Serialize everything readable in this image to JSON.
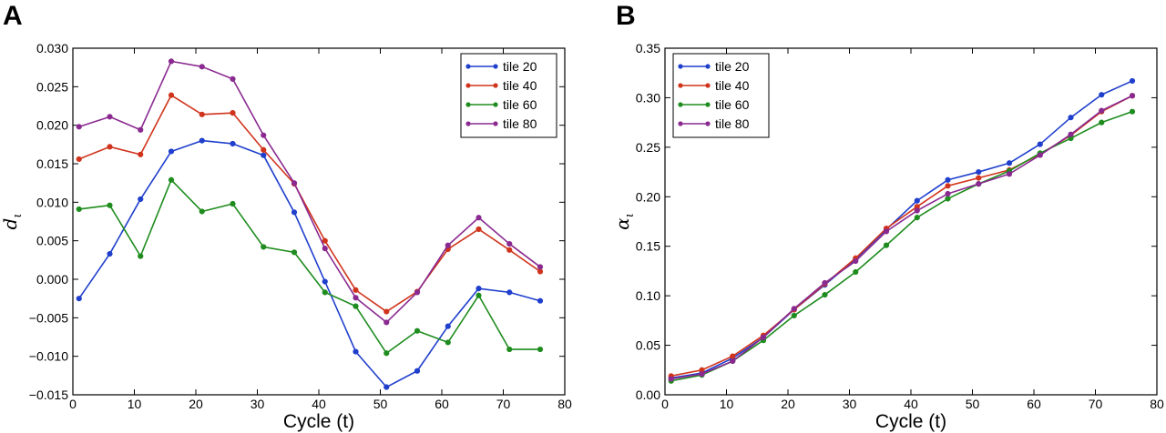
{
  "chart_data": [
    {
      "panel": "A",
      "type": "line",
      "xlabel": "Cycle (t)",
      "ylabel_symbol": "d",
      "ylabel_subscript": "ι",
      "xlim": [
        0,
        80
      ],
      "ylim": [
        -0.015,
        0.03
      ],
      "xticks": [
        0,
        10,
        20,
        30,
        40,
        50,
        60,
        70,
        80
      ],
      "yticks": [
        -0.015,
        -0.01,
        -0.005,
        0.0,
        0.005,
        0.01,
        0.015,
        0.02,
        0.025,
        0.03
      ],
      "ytick_labels": [
        "−0.015",
        "−0.010",
        "−0.005",
        "0.000",
        "0.005",
        "0.010",
        "0.015",
        "0.020",
        "0.025",
        "0.030"
      ],
      "legend_position": "top-right",
      "x": [
        1,
        6,
        11,
        16,
        21,
        26,
        31,
        36,
        41,
        46,
        51,
        56,
        61,
        66,
        71,
        76
      ],
      "series": [
        {
          "name": "tile 20",
          "color": "#1f3fcc",
          "values": [
            -0.0025,
            0.0033,
            0.0104,
            0.0166,
            0.018,
            0.0176,
            0.0161,
            0.0087,
            -0.0003,
            -0.0094,
            -0.014,
            -0.0119,
            -0.0061,
            -0.0012,
            -0.0017,
            -0.0028
          ]
        },
        {
          "name": "tile 40",
          "color": "#d0341c",
          "values": [
            0.0156,
            0.0172,
            0.0162,
            0.0239,
            0.0214,
            0.0216,
            0.0168,
            0.0124,
            0.005,
            -0.0014,
            -0.0042,
            -0.0016,
            0.0039,
            0.0065,
            0.0038,
            0.001
          ]
        },
        {
          "name": "tile 60",
          "color": "#1e8c1e",
          "values": [
            0.0091,
            0.0096,
            0.003,
            0.0129,
            0.0088,
            0.0098,
            0.0042,
            0.0035,
            -0.0017,
            -0.0035,
            -0.0096,
            -0.0067,
            -0.0082,
            -0.0021,
            -0.0091,
            -0.0091
          ]
        },
        {
          "name": "tile 80",
          "color": "#8a2a90",
          "values": [
            0.0198,
            0.0211,
            0.0194,
            0.0283,
            0.0276,
            0.026,
            0.0187,
            0.0125,
            0.004,
            -0.0024,
            -0.0056,
            -0.0017,
            0.0044,
            0.008,
            0.0046,
            0.0016
          ]
        }
      ]
    },
    {
      "panel": "B",
      "type": "line",
      "xlabel": "Cycle (t)",
      "ylabel_symbol": "α",
      "ylabel_subscript": "ι",
      "xlim": [
        0,
        80
      ],
      "ylim": [
        0.0,
        0.35
      ],
      "xticks": [
        0,
        10,
        20,
        30,
        40,
        50,
        60,
        70,
        80
      ],
      "yticks": [
        0.0,
        0.05,
        0.1,
        0.15,
        0.2,
        0.25,
        0.3,
        0.35
      ],
      "ytick_labels": [
        "0.00",
        "0.05",
        "0.10",
        "0.15",
        "0.20",
        "0.25",
        "0.30",
        "0.35"
      ],
      "legend_position": "top-left",
      "x": [
        1,
        6,
        11,
        16,
        21,
        26,
        31,
        36,
        41,
        46,
        51,
        56,
        61,
        66,
        71,
        76
      ],
      "series": [
        {
          "name": "tile 20",
          "color": "#1f3fcc",
          "values": [
            0.017,
            0.022,
            0.037,
            0.058,
            0.086,
            0.111,
            0.137,
            0.167,
            0.196,
            0.217,
            0.225,
            0.234,
            0.253,
            0.28,
            0.303,
            0.317
          ]
        },
        {
          "name": "tile 40",
          "color": "#d0341c",
          "values": [
            0.019,
            0.025,
            0.039,
            0.06,
            0.086,
            0.112,
            0.138,
            0.168,
            0.19,
            0.211,
            0.219,
            0.227,
            0.243,
            0.262,
            0.286,
            0.302
          ]
        },
        {
          "name": "tile 60",
          "color": "#1e8c1e",
          "values": [
            0.014,
            0.02,
            0.034,
            0.055,
            0.08,
            0.101,
            0.124,
            0.151,
            0.179,
            0.198,
            0.213,
            0.226,
            0.244,
            0.259,
            0.275,
            0.286
          ]
        },
        {
          "name": "tile 80",
          "color": "#8a2a90",
          "values": [
            0.016,
            0.021,
            0.034,
            0.058,
            0.087,
            0.113,
            0.135,
            0.165,
            0.186,
            0.203,
            0.213,
            0.223,
            0.242,
            0.263,
            0.287,
            0.302
          ]
        }
      ]
    }
  ]
}
